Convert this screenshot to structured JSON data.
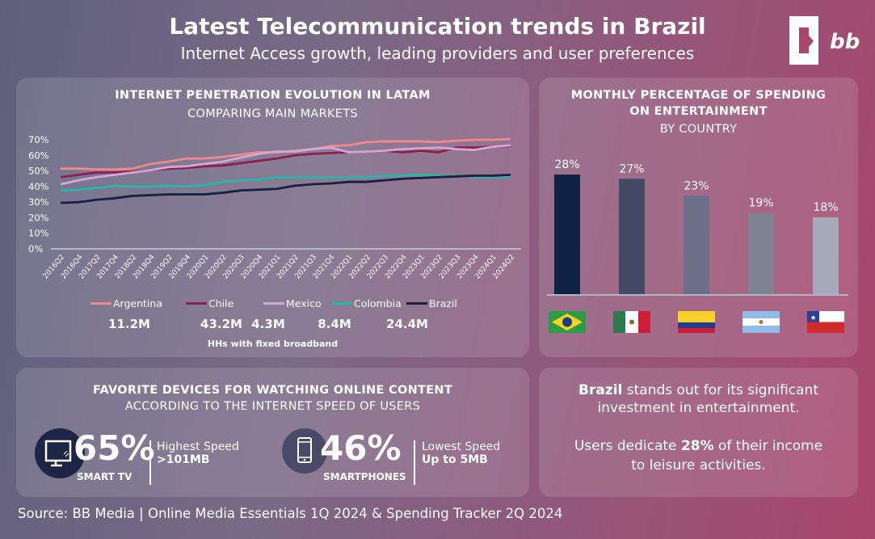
{
  "header": {
    "title": "Latest Telecommunication trends in Brazil",
    "subtitle": "Internet Access growth, leading providers and user preferences",
    "logo_text": "bb"
  },
  "colors": {
    "Argentina": "#f08a8a",
    "Chile": "#8c1f50",
    "Mexico": "#d3a8d6",
    "Colombia": "#2ab5a8",
    "Brazil": "#1a1f3f"
  },
  "line_panel": {
    "title": "INTERNET PENETRATION EVOLUTION IN LATAM",
    "subtitle": "COMPARING MAIN MARKETS",
    "broadband": [
      {
        "country": "Argentina",
        "value": "11.2M"
      },
      {
        "country": "Chile",
        "value": "43.2M"
      },
      {
        "country": "Mexico",
        "value": "4.3M"
      },
      {
        "country": "Colombia",
        "value": "8.4M"
      },
      {
        "country": "Brazil",
        "value": "24.4M"
      }
    ],
    "broadband_label": "HHs with fixed broadband"
  },
  "bar_panel": {
    "title_line1": "MONTHLY PERCENTAGE OF SPENDING",
    "title_line2": "ON ENTERTAINMENT",
    "subtitle": "BY COUNTRY"
  },
  "chart_data": [
    {
      "type": "line",
      "title": "INTERNET PENETRATION EVOLUTION IN LATAM",
      "subtitle": "COMPARING MAIN MARKETS",
      "ylim": [
        0,
        70
      ],
      "yticks": [
        "0%",
        "10%",
        "20%",
        "30%",
        "40%",
        "50%",
        "60%",
        "70%"
      ],
      "legend": "bottom",
      "x": [
        "2016Q2",
        "2016Q4",
        "2017Q2",
        "2017Q4",
        "2018Q2",
        "2018Q4",
        "2019Q2",
        "2019Q4",
        "2020Q1",
        "2020Q2",
        "2020Q3",
        "2020Q4",
        "2021Q1",
        "2021Q2",
        "2021Q3",
        "2021Q4",
        "2022Q1",
        "2022Q2",
        "2022Q3",
        "2022Q4",
        "2023Q1",
        "2023Q2",
        "2023Q3",
        "2023Q4",
        "2024Q1",
        "2024Q2"
      ],
      "series": [
        {
          "name": "Argentina",
          "values": [
            51.5,
            51.5,
            51,
            51,
            51.5,
            54.5,
            56,
            58,
            58,
            59,
            60.5,
            62,
            62,
            63,
            64,
            66,
            66.5,
            68.5,
            69,
            69,
            69,
            68.5,
            69.5,
            70,
            70,
            70.5
          ]
        },
        {
          "name": "Chile",
          "values": [
            46,
            47.5,
            49,
            49,
            49.5,
            50.5,
            51.5,
            52,
            53,
            53.5,
            55,
            56.5,
            58,
            60,
            61,
            61.5,
            62,
            62.5,
            63,
            62,
            63,
            62,
            65,
            65,
            65.5,
            66
          ]
        },
        {
          "name": "Mexico",
          "values": [
            41.5,
            44,
            46,
            47.5,
            49,
            50.5,
            52.5,
            53,
            54.5,
            56,
            58.5,
            61,
            62.5,
            62.5,
            64,
            65,
            62,
            62.5,
            63,
            64,
            64.5,
            65,
            64,
            63.5,
            65.5,
            66.5
          ]
        },
        {
          "name": "Colombia",
          "values": [
            37.5,
            38,
            39,
            40.5,
            40,
            40,
            40.5,
            40,
            41,
            43,
            44,
            44.5,
            46,
            46,
            46,
            46,
            46,
            46,
            47,
            47,
            47.5,
            47,
            47,
            46,
            46,
            46.5
          ]
        },
        {
          "name": "Brazil",
          "values": [
            29.5,
            30,
            31.5,
            32.5,
            34,
            34.5,
            35,
            35,
            35,
            36,
            37.5,
            38,
            38.5,
            40.5,
            41.5,
            42,
            43,
            43,
            44,
            45,
            45.5,
            46,
            46.5,
            47,
            47,
            47.5
          ]
        }
      ]
    },
    {
      "type": "bar",
      "title": "MONTHLY PERCENTAGE OF SPENDING ON ENTERTAINMENT",
      "subtitle": "BY COUNTRY",
      "categories": [
        "Brazil",
        "Mexico",
        "Colombia",
        "Argentina",
        "Chile"
      ],
      "values": [
        28,
        27,
        23,
        19,
        18
      ],
      "labels": [
        "28%",
        "27%",
        "23%",
        "19%",
        "18%"
      ],
      "bar_colors": [
        "#0f2244",
        "#454a64",
        "#6b7088",
        "#7e8292",
        "#a6a9b8"
      ]
    }
  ],
  "devices": {
    "title": "FAVORITE DEVICES FOR WATCHING ONLINE CONTENT",
    "subtitle": "ACCORDING TO THE INTERNET SPEED OF USERS",
    "items": [
      {
        "icon": "tv-icon",
        "percent": "65%",
        "device": "SMART TV",
        "speed_label": "Highest Speed",
        "speed_value": ">101MB"
      },
      {
        "icon": "smartphone-icon",
        "percent": "46%",
        "device": "SMARTPHONES",
        "speed_label": "Lowest Speed",
        "speed_value": "Up to 5MB"
      }
    ]
  },
  "insight": {
    "bold": "Brazil",
    "line1_rest": " stands out for its significant",
    "line2": "investment in entertainment.",
    "line3_pre": "Users dedicate ",
    "line3_bold": "28%",
    "line3_post": " of their income",
    "line4": "to leisure activities."
  },
  "source": "Source: BB Media | Online Media Essentials 1Q 2024 & Spending Tracker 2Q 2024"
}
